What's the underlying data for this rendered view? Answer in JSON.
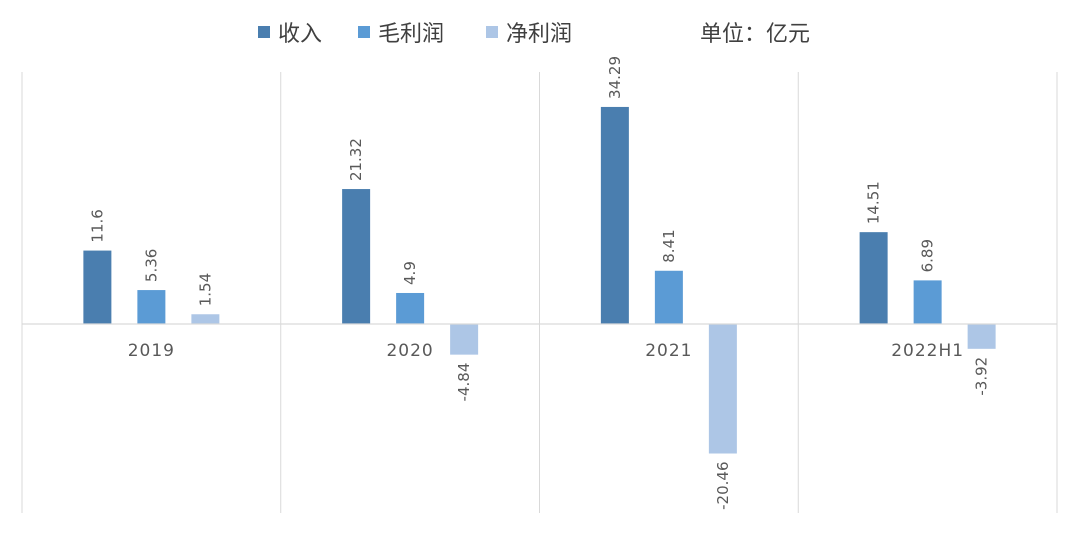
{
  "legend": [
    {
      "label": "收入",
      "color": "#4a7eaf"
    },
    {
      "label": "毛利润",
      "color": "#5b9bd5"
    },
    {
      "label": "净利润",
      "color": "#adc6e6"
    }
  ],
  "unit_text": "单位：亿元",
  "chart_data": {
    "type": "bar",
    "categories": [
      "2019",
      "2020",
      "2021",
      "2022H1"
    ],
    "series": [
      {
        "name": "收入",
        "values": [
          11.6,
          21.32,
          34.29,
          14.51
        ],
        "labels": [
          "11.6",
          "21.32",
          "34.29",
          "14.51"
        ],
        "color": "#4a7eaf"
      },
      {
        "name": "毛利润",
        "values": [
          5.36,
          4.9,
          8.41,
          6.89
        ],
        "labels": [
          "5.36",
          "4.9",
          "8.41",
          "6.89"
        ],
        "color": "#5b9bd5"
      },
      {
        "name": "净利润",
        "values": [
          1.54,
          -4.84,
          -20.46,
          -3.92
        ],
        "labels": [
          "1.54",
          "-4.84",
          "-20.46",
          "-3.92"
        ],
        "color": "#adc6e6"
      }
    ],
    "unit": "亿元",
    "data_labels": true,
    "gridlines": "vertical category separators",
    "legend_position": "top"
  }
}
